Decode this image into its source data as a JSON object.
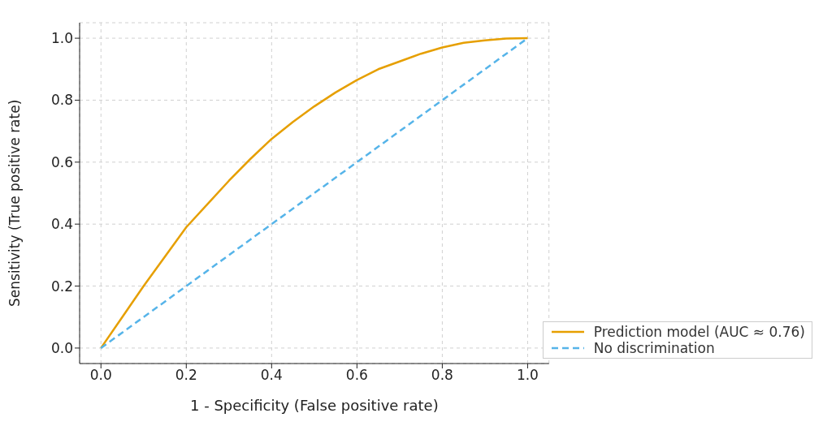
{
  "chart_data": {
    "type": "line",
    "xlabel": "1 - Specificity (False positive rate)",
    "ylabel": "Sensitivity (True positive rate)",
    "xlim": [
      -0.05,
      1.05
    ],
    "ylim": [
      -0.05,
      1.05
    ],
    "xticks": [
      {
        "value": 0,
        "label": "0.0"
      },
      {
        "value": 0.2,
        "label": "0.2"
      },
      {
        "value": 0.4,
        "label": "0.4"
      },
      {
        "value": 0.6,
        "label": "0.6"
      },
      {
        "value": 0.8,
        "label": "0.8"
      },
      {
        "value": 1,
        "label": "1.0"
      }
    ],
    "yticks": [
      {
        "value": 0,
        "label": "0.0"
      },
      {
        "value": 0.2,
        "label": "0.2"
      },
      {
        "value": 0.4,
        "label": "0.4"
      },
      {
        "value": 0.6,
        "label": "0.6"
      },
      {
        "value": 0.8,
        "label": "0.8"
      },
      {
        "value": 1,
        "label": "1.0"
      }
    ],
    "grid": true,
    "legend": "bottom right",
    "marker": "none",
    "series": [
      {
        "name": "Prediction model (AUC ≈ 0.76)",
        "color": "#e69f00",
        "line_style": "solid",
        "x": [
          0,
          0.05,
          0.1,
          0.15,
          0.2,
          0.25,
          0.3,
          0.35,
          0.4,
          0.45,
          0.5,
          0.55,
          0.6,
          0.65,
          0.7,
          0.75,
          0.8,
          0.85,
          0.9,
          0.95,
          1
        ],
        "values": [
          0,
          0.1,
          0.2,
          0.295,
          0.39,
          0.465,
          0.54,
          0.61,
          0.675,
          0.73,
          0.78,
          0.825,
          0.865,
          0.9,
          0.925,
          0.95,
          0.97,
          0.985,
          0.993,
          0.999,
          1
        ]
      },
      {
        "name": "No discrimination",
        "color": "#56b4e9",
        "line_style": "dashed",
        "x": [
          0,
          1
        ],
        "values": [
          0,
          1
        ]
      }
    ]
  }
}
